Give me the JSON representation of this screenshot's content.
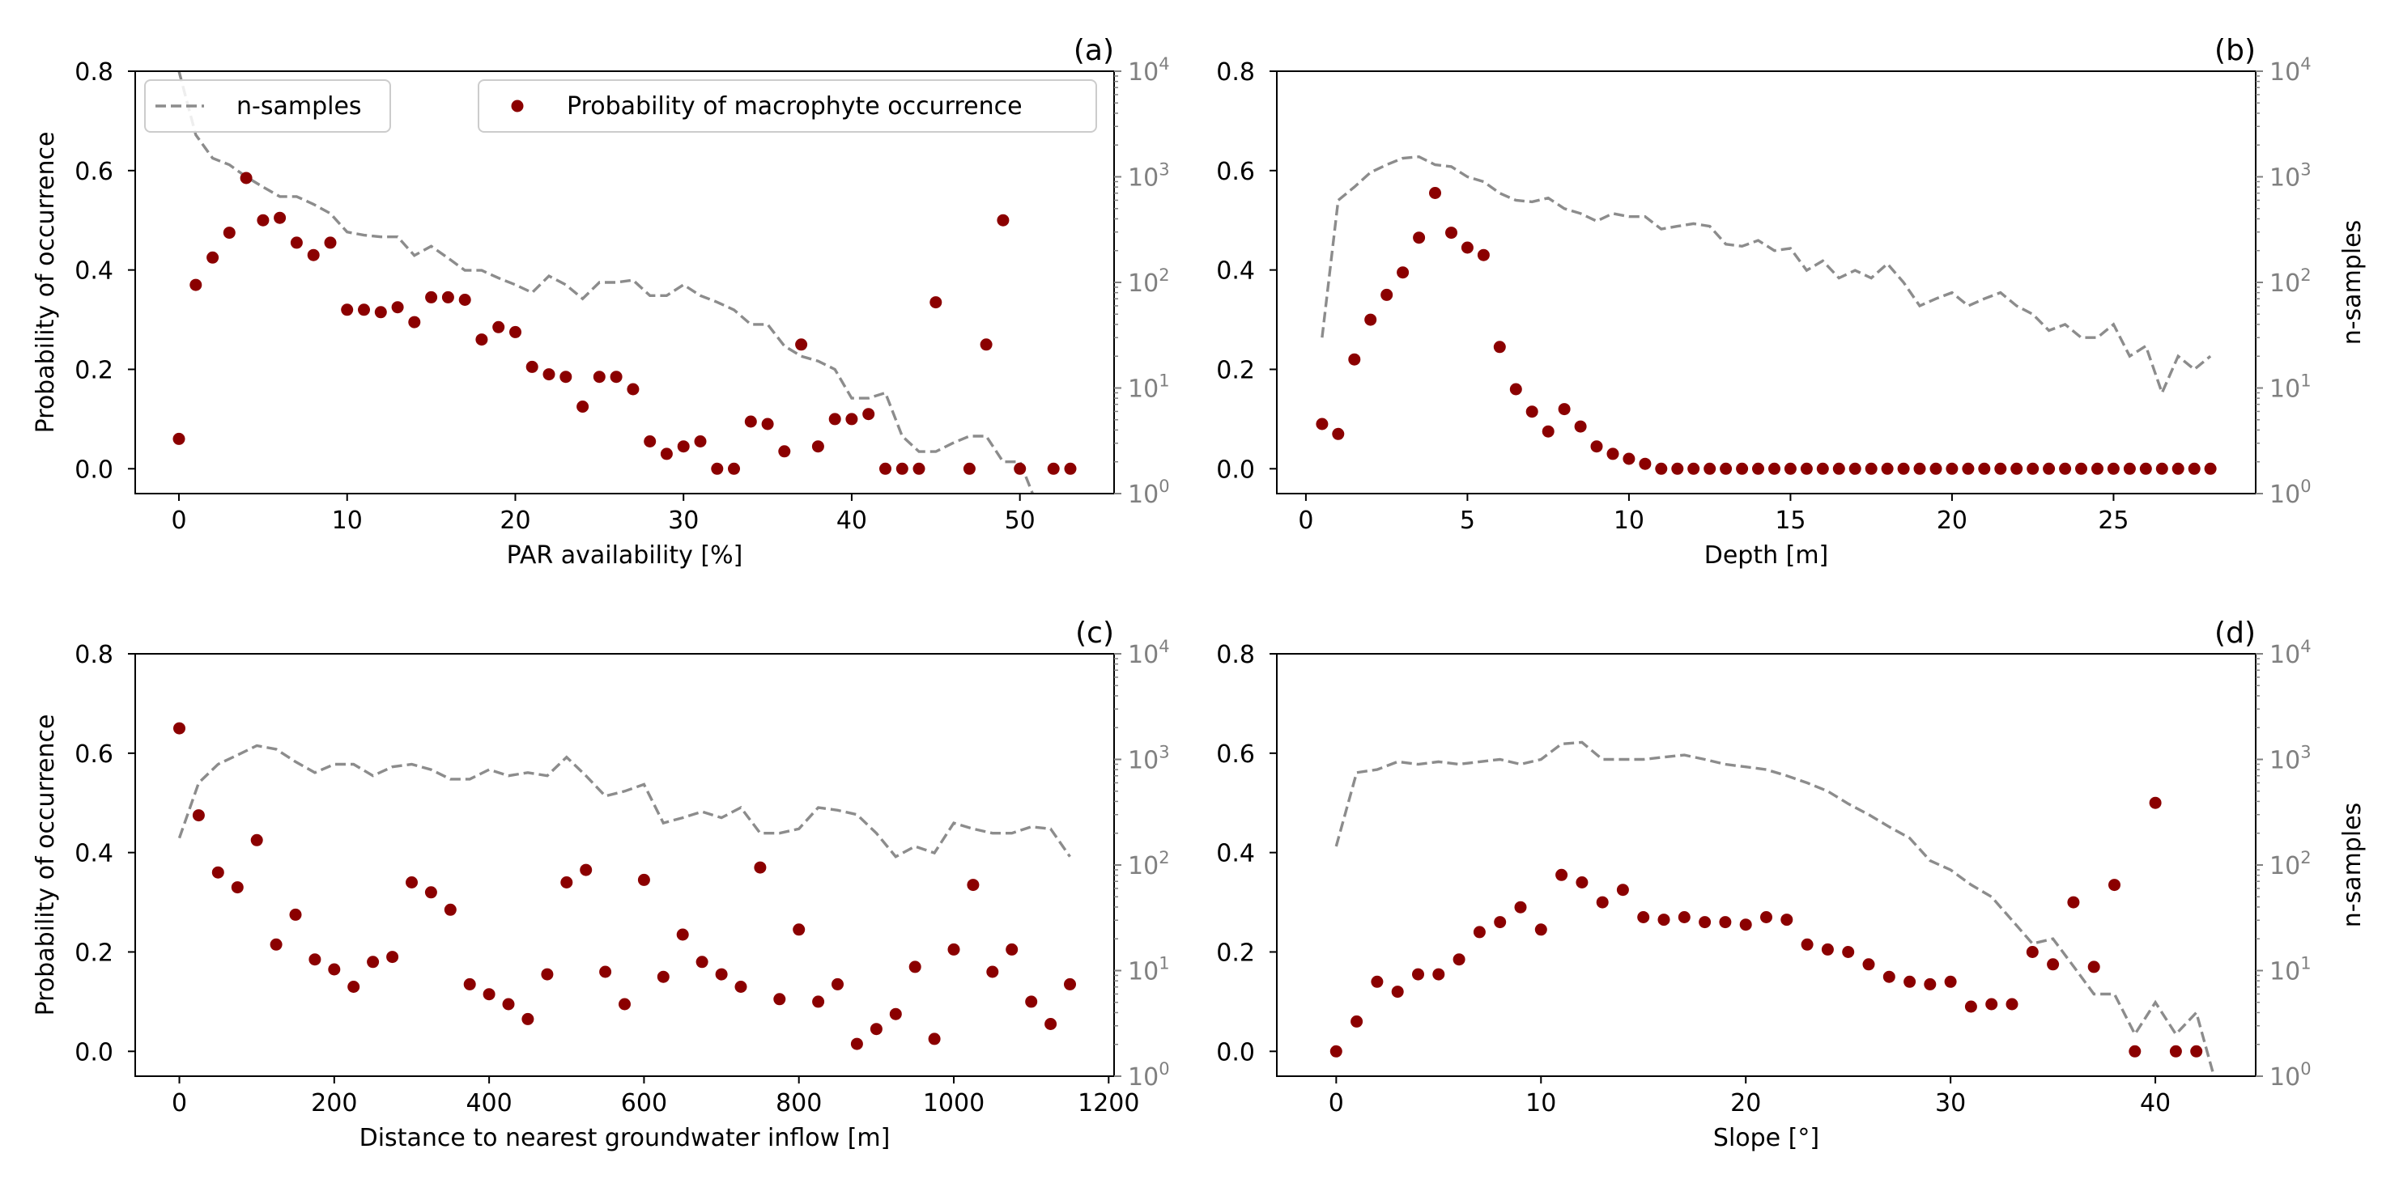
{
  "colors": {
    "points": "#8b0000",
    "line": "#8c8c8c",
    "right_axis": "#808080",
    "axes": "#000000"
  },
  "legend": {
    "line_label": "n-samples",
    "points_label": "Probability of macrophyte occurrence"
  },
  "chart_data": [
    {
      "type": "scatter",
      "panel_label": "(a)",
      "xlabel": "PAR availability [%]",
      "ylabel": "Probability of occurrence",
      "ylabel_right": "",
      "xlim": [
        -2.6,
        55.6
      ],
      "xticks": [
        0,
        10,
        20,
        30,
        40,
        50
      ],
      "xtick_labels": [
        "0",
        "10",
        "20",
        "30",
        "40",
        "50"
      ],
      "ylim": [
        -0.05,
        0.8
      ],
      "yticks": [
        0.0,
        0.2,
        0.4,
        0.6,
        0.8
      ],
      "ytick_labels": [
        "0.0",
        "0.2",
        "0.4",
        "0.6",
        "0.8"
      ],
      "y2_scale": "log",
      "y2lim": [
        1,
        10000
      ],
      "y2ticks": [
        1,
        10,
        100,
        1000,
        10000
      ],
      "y2tick_labels": [
        "10^0",
        "10^1",
        "10^2",
        "10^3",
        "10^4"
      ],
      "legend_shown": true,
      "series": [
        {
          "name": "Probability of macrophyte occurrence",
          "axis": "left",
          "x": [
            0,
            1,
            2,
            3,
            4,
            5,
            6,
            7,
            8,
            9,
            10,
            11,
            12,
            13,
            14,
            15,
            16,
            17,
            18,
            19,
            20,
            21,
            22,
            23,
            24,
            25,
            26,
            27,
            28,
            29,
            30,
            31,
            32,
            33,
            34,
            35,
            36,
            37,
            38,
            39,
            40,
            41,
            42,
            43,
            44,
            45,
            47,
            48,
            49,
            50,
            52,
            53
          ],
          "y": [
            0.06,
            0.37,
            0.425,
            0.475,
            0.585,
            0.5,
            0.505,
            0.455,
            0.43,
            0.455,
            0.32,
            0.32,
            0.315,
            0.325,
            0.295,
            0.345,
            0.345,
            0.34,
            0.26,
            0.285,
            0.275,
            0.205,
            0.19,
            0.185,
            0.125,
            0.185,
            0.185,
            0.16,
            0.055,
            0.03,
            0.045,
            0.055,
            0.0,
            0.0,
            0.095,
            0.09,
            0.035,
            0.25,
            0.045,
            0.1,
            0.1,
            0.11,
            0.0,
            0.0,
            0.0,
            0.335,
            0.0,
            0.25,
            0.5,
            0.0,
            0.0,
            0.0
          ]
        },
        {
          "name": "n-samples",
          "axis": "right",
          "x": [
            0,
            1,
            2,
            3,
            4,
            5,
            6,
            7,
            8,
            9,
            10,
            11,
            12,
            13,
            14,
            15,
            16,
            17,
            18,
            19,
            20,
            21,
            22,
            23,
            24,
            25,
            26,
            27,
            28,
            29,
            30,
            31,
            32,
            33,
            34,
            35,
            36,
            37,
            38,
            39,
            40,
            41,
            42,
            43,
            44,
            45,
            46,
            47,
            48,
            49,
            50,
            51,
            52,
            53
          ],
          "y": [
            10000,
            2500,
            1500,
            1300,
            1000,
            800,
            650,
            650,
            550,
            450,
            300,
            280,
            270,
            270,
            180,
            220,
            170,
            130,
            130,
            110,
            95,
            80,
            115,
            95,
            70,
            100,
            100,
            105,
            75,
            75,
            95,
            75,
            65,
            55,
            40,
            40,
            25,
            20,
            18,
            15,
            8,
            8,
            9,
            3.5,
            2.5,
            2.5,
            3,
            3.5,
            3.5,
            2,
            2,
            0.8,
            0.8,
            0.8
          ]
        }
      ]
    },
    {
      "type": "scatter",
      "panel_label": "(b)",
      "xlabel": "Depth [m]",
      "ylabel": "",
      "ylabel_right": "n-samples",
      "xlim": [
        -0.9,
        29.4
      ],
      "xticks": [
        0,
        5,
        10,
        15,
        20,
        25
      ],
      "xtick_labels": [
        "0",
        "5",
        "10",
        "15",
        "20",
        "25"
      ],
      "ylim": [
        -0.05,
        0.8
      ],
      "yticks": [
        0.0,
        0.2,
        0.4,
        0.6,
        0.8
      ],
      "ytick_labels": [
        "0.0",
        "0.2",
        "0.4",
        "0.6",
        "0.8"
      ],
      "y2_scale": "log",
      "y2lim": [
        1,
        10000
      ],
      "y2ticks": [
        1,
        10,
        100,
        1000,
        10000
      ],
      "y2tick_labels": [
        "10^0",
        "10^1",
        "10^2",
        "10^3",
        "10^4"
      ],
      "legend_shown": false,
      "series": [
        {
          "name": "Probability of macrophyte occurrence",
          "axis": "left",
          "x": [
            0.5,
            1.0,
            1.5,
            2.0,
            2.5,
            3.0,
            3.5,
            4.0,
            4.5,
            5.0,
            5.5,
            6.0,
            6.5,
            7.0,
            7.5,
            8.0,
            8.5,
            9.0,
            9.5,
            10.0,
            10.5,
            11.0,
            11.5,
            12.0,
            12.5,
            13.0,
            13.5,
            14.0,
            14.5,
            15.0,
            15.5,
            16.0,
            16.5,
            17.0,
            17.5,
            18.0,
            18.5,
            19.0,
            19.5,
            20.0,
            20.5,
            21.0,
            21.5,
            22.0,
            22.5,
            23.0,
            23.5,
            24.0,
            24.5,
            25.0,
            25.5,
            26.0,
            26.5,
            27.0,
            27.5,
            28.0
          ],
          "y": [
            0.09,
            0.07,
            0.22,
            0.3,
            0.35,
            0.395,
            0.465,
            0.555,
            0.475,
            0.445,
            0.43,
            0.245,
            0.16,
            0.115,
            0.075,
            0.12,
            0.085,
            0.045,
            0.03,
            0.02,
            0.01,
            0.0,
            0.0,
            0.0,
            0.0,
            0.0,
            0.0,
            0.0,
            0.0,
            0.0,
            0.0,
            0.0,
            0.0,
            0.0,
            0.0,
            0.0,
            0.0,
            0.0,
            0.0,
            0.0,
            0.0,
            0.0,
            0.0,
            0.0,
            0.0,
            0.0,
            0.0,
            0.0,
            0.0,
            0.0,
            0.0,
            0.0,
            0.0,
            0.0,
            0.0,
            0.0
          ]
        },
        {
          "name": "n-samples",
          "axis": "right",
          "x": [
            0.5,
            1.0,
            1.5,
            2.0,
            2.5,
            3.0,
            3.5,
            4.0,
            4.5,
            5.0,
            5.5,
            6.0,
            6.5,
            7.0,
            7.5,
            8.0,
            8.5,
            9.0,
            9.5,
            10.0,
            10.5,
            11.0,
            11.5,
            12.0,
            12.5,
            13.0,
            13.5,
            14.0,
            14.5,
            15.0,
            15.5,
            16.0,
            16.5,
            17.0,
            17.5,
            18.0,
            18.5,
            19.0,
            19.5,
            20.0,
            20.5,
            21.0,
            21.5,
            22.0,
            22.5,
            23.0,
            23.5,
            24.0,
            24.5,
            25.0,
            25.5,
            26.0,
            26.5,
            27.0,
            27.5,
            28.0
          ],
          "y": [
            30,
            600,
            800,
            1100,
            1300,
            1500,
            1550,
            1300,
            1250,
            1000,
            900,
            700,
            600,
            580,
            630,
            500,
            450,
            380,
            450,
            420,
            420,
            320,
            340,
            360,
            340,
            230,
            220,
            250,
            200,
            210,
            130,
            160,
            110,
            130,
            110,
            150,
            100,
            60,
            70,
            80,
            60,
            70,
            80,
            60,
            50,
            35,
            40,
            30,
            30,
            40,
            20,
            25,
            9,
            20,
            15,
            20
          ]
        }
      ]
    },
    {
      "type": "scatter",
      "panel_label": "(c)",
      "xlabel": "Distance to nearest groundwater inflow [m]",
      "ylabel": "Probability of occurrence",
      "ylabel_right": "",
      "xlim": [
        -57,
        1207
      ],
      "xticks": [
        0,
        200,
        400,
        600,
        800,
        1000,
        1200
      ],
      "xtick_labels": [
        "0",
        "200",
        "400",
        "600",
        "800",
        "1000",
        "1200"
      ],
      "ylim": [
        -0.05,
        0.8
      ],
      "yticks": [
        0.0,
        0.2,
        0.4,
        0.6,
        0.8
      ],
      "ytick_labels": [
        "0.0",
        "0.2",
        "0.4",
        "0.6",
        "0.8"
      ],
      "y2_scale": "log",
      "y2lim": [
        1,
        10000
      ],
      "y2ticks": [
        1,
        10,
        100,
        1000,
        10000
      ],
      "y2tick_labels": [
        "10^0",
        "10^1",
        "10^2",
        "10^3",
        "10^4"
      ],
      "legend_shown": false,
      "series": [
        {
          "name": "Probability of macrophyte occurrence",
          "axis": "left",
          "x": [
            0,
            25,
            50,
            75,
            100,
            125,
            150,
            175,
            200,
            225,
            250,
            275,
            300,
            325,
            350,
            375,
            400,
            425,
            450,
            475,
            500,
            525,
            550,
            575,
            600,
            625,
            650,
            675,
            700,
            725,
            750,
            775,
            800,
            825,
            850,
            875,
            900,
            925,
            950,
            975,
            1000,
            1025,
            1050,
            1075,
            1100,
            1125,
            1150
          ],
          "y": [
            0.65,
            0.475,
            0.36,
            0.33,
            0.425,
            0.215,
            0.275,
            0.185,
            0.165,
            0.13,
            0.18,
            0.19,
            0.34,
            0.32,
            0.285,
            0.135,
            0.115,
            0.095,
            0.065,
            0.155,
            0.34,
            0.365,
            0.16,
            0.095,
            0.345,
            0.15,
            0.235,
            0.18,
            0.155,
            0.13,
            0.37,
            0.105,
            0.245,
            0.1,
            0.135,
            0.015,
            0.045,
            0.075,
            0.17,
            0.025,
            0.205,
            0.335,
            0.16,
            0.205,
            0.1,
            0.055,
            0.135
          ]
        },
        {
          "name": "n-samples",
          "axis": "right",
          "x": [
            0,
            25,
            50,
            75,
            100,
            125,
            150,
            175,
            200,
            225,
            250,
            275,
            300,
            325,
            350,
            375,
            400,
            425,
            450,
            475,
            500,
            525,
            550,
            575,
            600,
            625,
            650,
            675,
            700,
            725,
            750,
            775,
            800,
            825,
            850,
            875,
            900,
            925,
            950,
            975,
            1000,
            1025,
            1050,
            1075,
            1100,
            1125,
            1150
          ],
          "y": [
            180,
            600,
            900,
            1100,
            1350,
            1250,
            950,
            750,
            900,
            900,
            700,
            850,
            900,
            800,
            650,
            650,
            800,
            700,
            750,
            700,
            1050,
            700,
            450,
            500,
            580,
            250,
            280,
            320,
            280,
            350,
            200,
            200,
            220,
            350,
            330,
            300,
            200,
            120,
            150,
            130,
            250,
            220,
            200,
            200,
            230,
            220,
            120
          ]
        }
      ]
    },
    {
      "type": "scatter",
      "panel_label": "(d)",
      "xlabel": "Slope [°]",
      "ylabel": "",
      "ylabel_right": "n-samples",
      "xlim": [
        -2.9,
        44.9
      ],
      "xticks": [
        0,
        10,
        20,
        30,
        40
      ],
      "xtick_labels": [
        "0",
        "10",
        "20",
        "30",
        "40"
      ],
      "ylim": [
        -0.05,
        0.8
      ],
      "yticks": [
        0.0,
        0.2,
        0.4,
        0.6,
        0.8
      ],
      "ytick_labels": [
        "0.0",
        "0.2",
        "0.4",
        "0.6",
        "0.8"
      ],
      "y2_scale": "log",
      "y2lim": [
        1,
        10000
      ],
      "y2ticks": [
        1,
        10,
        100,
        1000,
        10000
      ],
      "y2tick_labels": [
        "10^0",
        "10^1",
        "10^2",
        "10^3",
        "10^4"
      ],
      "legend_shown": false,
      "series": [
        {
          "name": "Probability of macrophyte occurrence",
          "axis": "left",
          "x": [
            0,
            1,
            2,
            3,
            4,
            5,
            6,
            7,
            8,
            9,
            10,
            11,
            12,
            13,
            14,
            15,
            16,
            17,
            18,
            19,
            20,
            21,
            22,
            23,
            24,
            25,
            26,
            27,
            28,
            29,
            30,
            31,
            32,
            33,
            34,
            35,
            36,
            37,
            38,
            39,
            40,
            41,
            42
          ],
          "y": [
            0.0,
            0.06,
            0.14,
            0.12,
            0.155,
            0.155,
            0.185,
            0.24,
            0.26,
            0.29,
            0.245,
            0.355,
            0.34,
            0.3,
            0.325,
            0.27,
            0.265,
            0.27,
            0.26,
            0.26,
            0.255,
            0.27,
            0.265,
            0.215,
            0.205,
            0.2,
            0.175,
            0.15,
            0.14,
            0.135,
            0.14,
            0.09,
            0.095,
            0.095,
            0.2,
            0.175,
            0.3,
            0.17,
            0.335,
            0.0,
            0.5,
            0.0,
            0.0
          ]
        },
        {
          "name": "n-samples",
          "axis": "right",
          "x": [
            0,
            1,
            2,
            3,
            4,
            5,
            6,
            7,
            8,
            9,
            10,
            11,
            12,
            13,
            14,
            15,
            16,
            17,
            18,
            19,
            20,
            21,
            22,
            23,
            24,
            25,
            26,
            27,
            28,
            29,
            30,
            31,
            32,
            33,
            34,
            35,
            36,
            37,
            38,
            39,
            40,
            41,
            42,
            43
          ],
          "y": [
            150,
            750,
            800,
            950,
            900,
            950,
            900,
            950,
            1000,
            900,
            1000,
            1400,
            1450,
            1000,
            1000,
            1000,
            1050,
            1100,
            1000,
            900,
            850,
            800,
            700,
            600,
            500,
            380,
            300,
            230,
            180,
            110,
            90,
            65,
            50,
            30,
            18,
            20,
            11,
            6,
            6,
            2.5,
            5,
            2.5,
            4,
            0.8
          ]
        }
      ]
    }
  ]
}
